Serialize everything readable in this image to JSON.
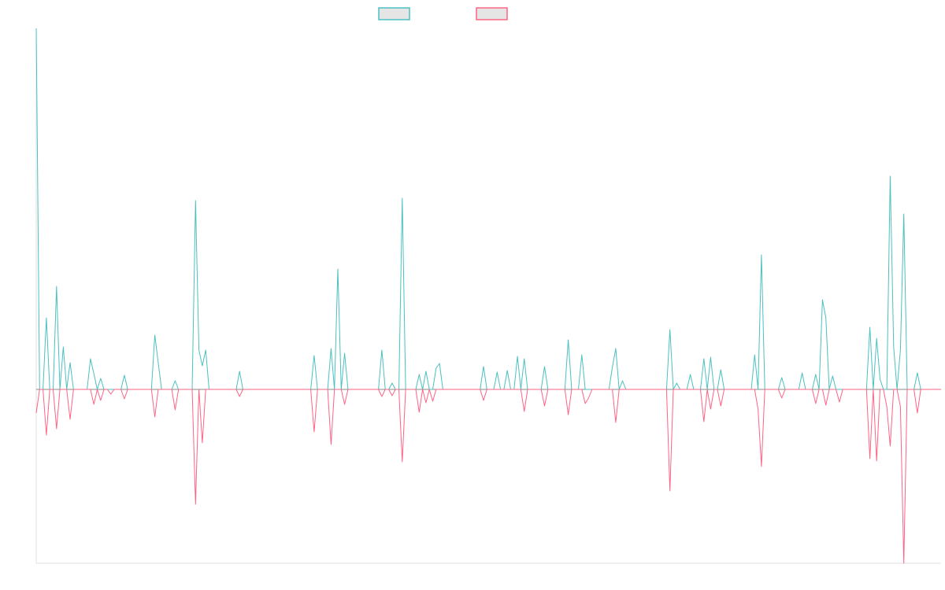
{
  "chart_data": {
    "type": "line",
    "title": "",
    "xlabel": "",
    "ylabel": "",
    "xlim": [
      0,
      267
    ],
    "ylim": [
      -221,
      459
    ],
    "grid": false,
    "legend_position": "top-center",
    "series": [
      {
        "name": "",
        "color": "#4bc0c0",
        "points": [
          [
            0,
            459
          ],
          [
            3,
            91
          ],
          [
            6,
            131
          ],
          [
            8,
            54
          ],
          [
            10,
            34
          ],
          [
            16,
            39
          ],
          [
            17,
            20
          ],
          [
            19,
            14
          ],
          [
            26,
            18
          ],
          [
            35,
            69
          ],
          [
            36,
            34
          ],
          [
            41,
            11
          ],
          [
            47,
            240
          ],
          [
            48,
            50
          ],
          [
            49,
            30
          ],
          [
            50,
            50
          ],
          [
            60,
            23
          ],
          [
            82,
            43
          ],
          [
            87,
            52
          ],
          [
            89,
            153
          ],
          [
            91,
            46
          ],
          [
            102,
            50
          ],
          [
            105,
            8
          ],
          [
            108,
            243
          ],
          [
            113,
            19
          ],
          [
            115,
            23
          ],
          [
            118,
            27
          ],
          [
            119,
            33
          ],
          [
            132,
            29
          ],
          [
            136,
            22
          ],
          [
            139,
            24
          ],
          [
            142,
            42
          ],
          [
            144,
            39
          ],
          [
            150,
            29
          ],
          [
            157,
            63
          ],
          [
            161,
            44
          ],
          [
            170,
            28
          ],
          [
            171,
            52
          ],
          [
            173,
            11
          ],
          [
            187,
            76
          ],
          [
            189,
            8
          ],
          [
            193,
            19
          ],
          [
            197,
            39
          ],
          [
            199,
            41
          ],
          [
            202,
            25
          ],
          [
            212,
            44
          ],
          [
            214,
            171
          ],
          [
            220,
            15
          ],
          [
            226,
            21
          ],
          [
            230,
            19
          ],
          [
            232,
            114
          ],
          [
            233,
            91
          ],
          [
            235,
            17
          ],
          [
            246,
            79
          ],
          [
            248,
            65
          ],
          [
            249,
            13
          ],
          [
            252,
            271
          ],
          [
            253,
            54
          ],
          [
            255,
            50
          ],
          [
            256,
            223
          ],
          [
            260,
            21
          ]
        ]
      },
      {
        "name": "",
        "color": "#ff6384",
        "points": [
          [
            0,
            -30
          ],
          [
            3,
            -58
          ],
          [
            6,
            -50
          ],
          [
            10,
            -38
          ],
          [
            17,
            -19
          ],
          [
            19,
            -14
          ],
          [
            22,
            -6
          ],
          [
            26,
            -12
          ],
          [
            35,
            -35
          ],
          [
            41,
            -26
          ],
          [
            47,
            -146
          ],
          [
            49,
            -68
          ],
          [
            60,
            -9
          ],
          [
            82,
            -54
          ],
          [
            87,
            -70
          ],
          [
            91,
            -19
          ],
          [
            102,
            -9
          ],
          [
            105,
            -8
          ],
          [
            108,
            -92
          ],
          [
            113,
            -29
          ],
          [
            115,
            -17
          ],
          [
            117,
            -15
          ],
          [
            132,
            -14
          ],
          [
            144,
            -28
          ],
          [
            150,
            -21
          ],
          [
            157,
            -32
          ],
          [
            162,
            -18
          ],
          [
            163,
            -11
          ],
          [
            171,
            -42
          ],
          [
            187,
            -129
          ],
          [
            197,
            -41
          ],
          [
            199,
            -25
          ],
          [
            202,
            -21
          ],
          [
            213,
            -25
          ],
          [
            214,
            -98
          ],
          [
            220,
            -11
          ],
          [
            230,
            -18
          ],
          [
            233,
            -20
          ],
          [
            237,
            -16
          ],
          [
            246,
            -88
          ],
          [
            248,
            -91
          ],
          [
            251,
            -22
          ],
          [
            252,
            -72
          ],
          [
            255,
            -22
          ],
          [
            256,
            -221
          ],
          [
            260,
            -30
          ]
        ]
      }
    ]
  }
}
